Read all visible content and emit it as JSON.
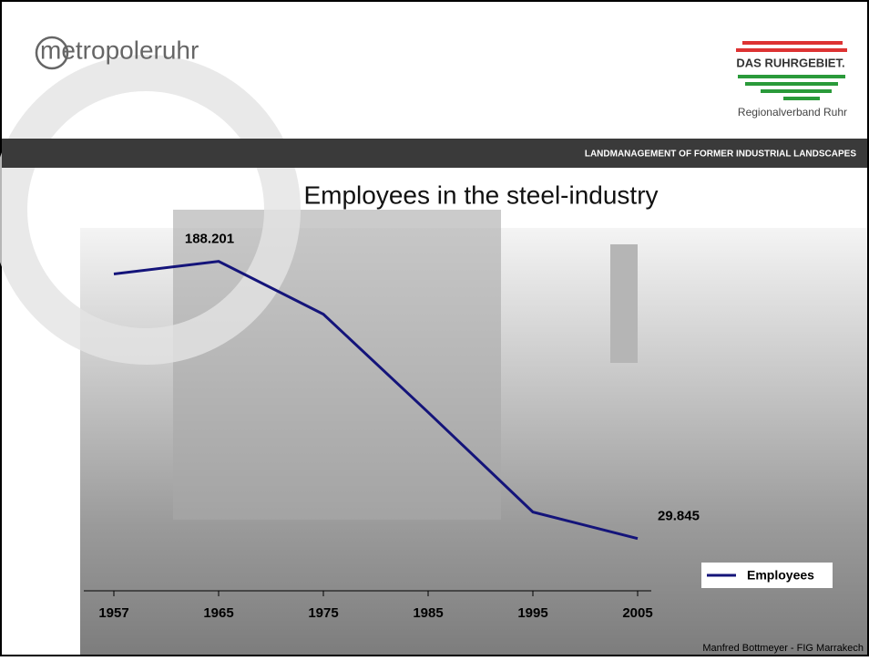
{
  "slide": {
    "logo_left": "metropoleruhr",
    "logo_right": "DAS RUHRGEBIET.",
    "organisation": "Regionalverband Ruhr",
    "banner": "LANDMANAGEMENT OF FORMER INDUSTRIAL LANDSCAPES",
    "footer": "Manfred Bottmeyer - FIG Marrakech"
  },
  "chart_data": {
    "type": "line",
    "title": "Employees in the steel-industry",
    "categories": [
      "1957",
      "1965",
      "1975",
      "1985",
      "1995",
      "2005"
    ],
    "series": [
      {
        "name": "Employees",
        "color": "#14147a",
        "values": [
          181000,
          188201,
          158000,
          102000,
          45000,
          29845
        ],
        "value_labels": [
          null,
          "188.201",
          null,
          null,
          null,
          "29.845"
        ]
      }
    ],
    "ylim": [
      0,
      200000
    ],
    "legend": "bottom-right"
  }
}
